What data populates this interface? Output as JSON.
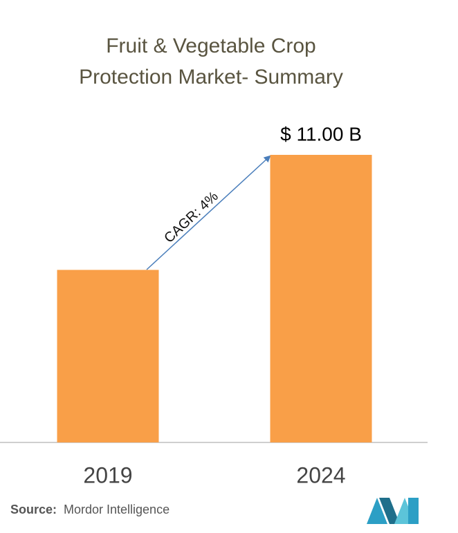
{
  "chart_data": {
    "type": "bar",
    "title": [
      "Fruit & Vegetable Crop",
      "Protection Market- Summary"
    ],
    "categories": [
      "2019",
      "2024"
    ],
    "values": [
      6.6,
      11.0
    ],
    "value_labels": [
      null,
      "$ 11.00 B"
    ],
    "color": "#f99f48",
    "annotation": "CAGR: 4%",
    "source_label": "Source:",
    "source": "Mordor Intelligence"
  }
}
